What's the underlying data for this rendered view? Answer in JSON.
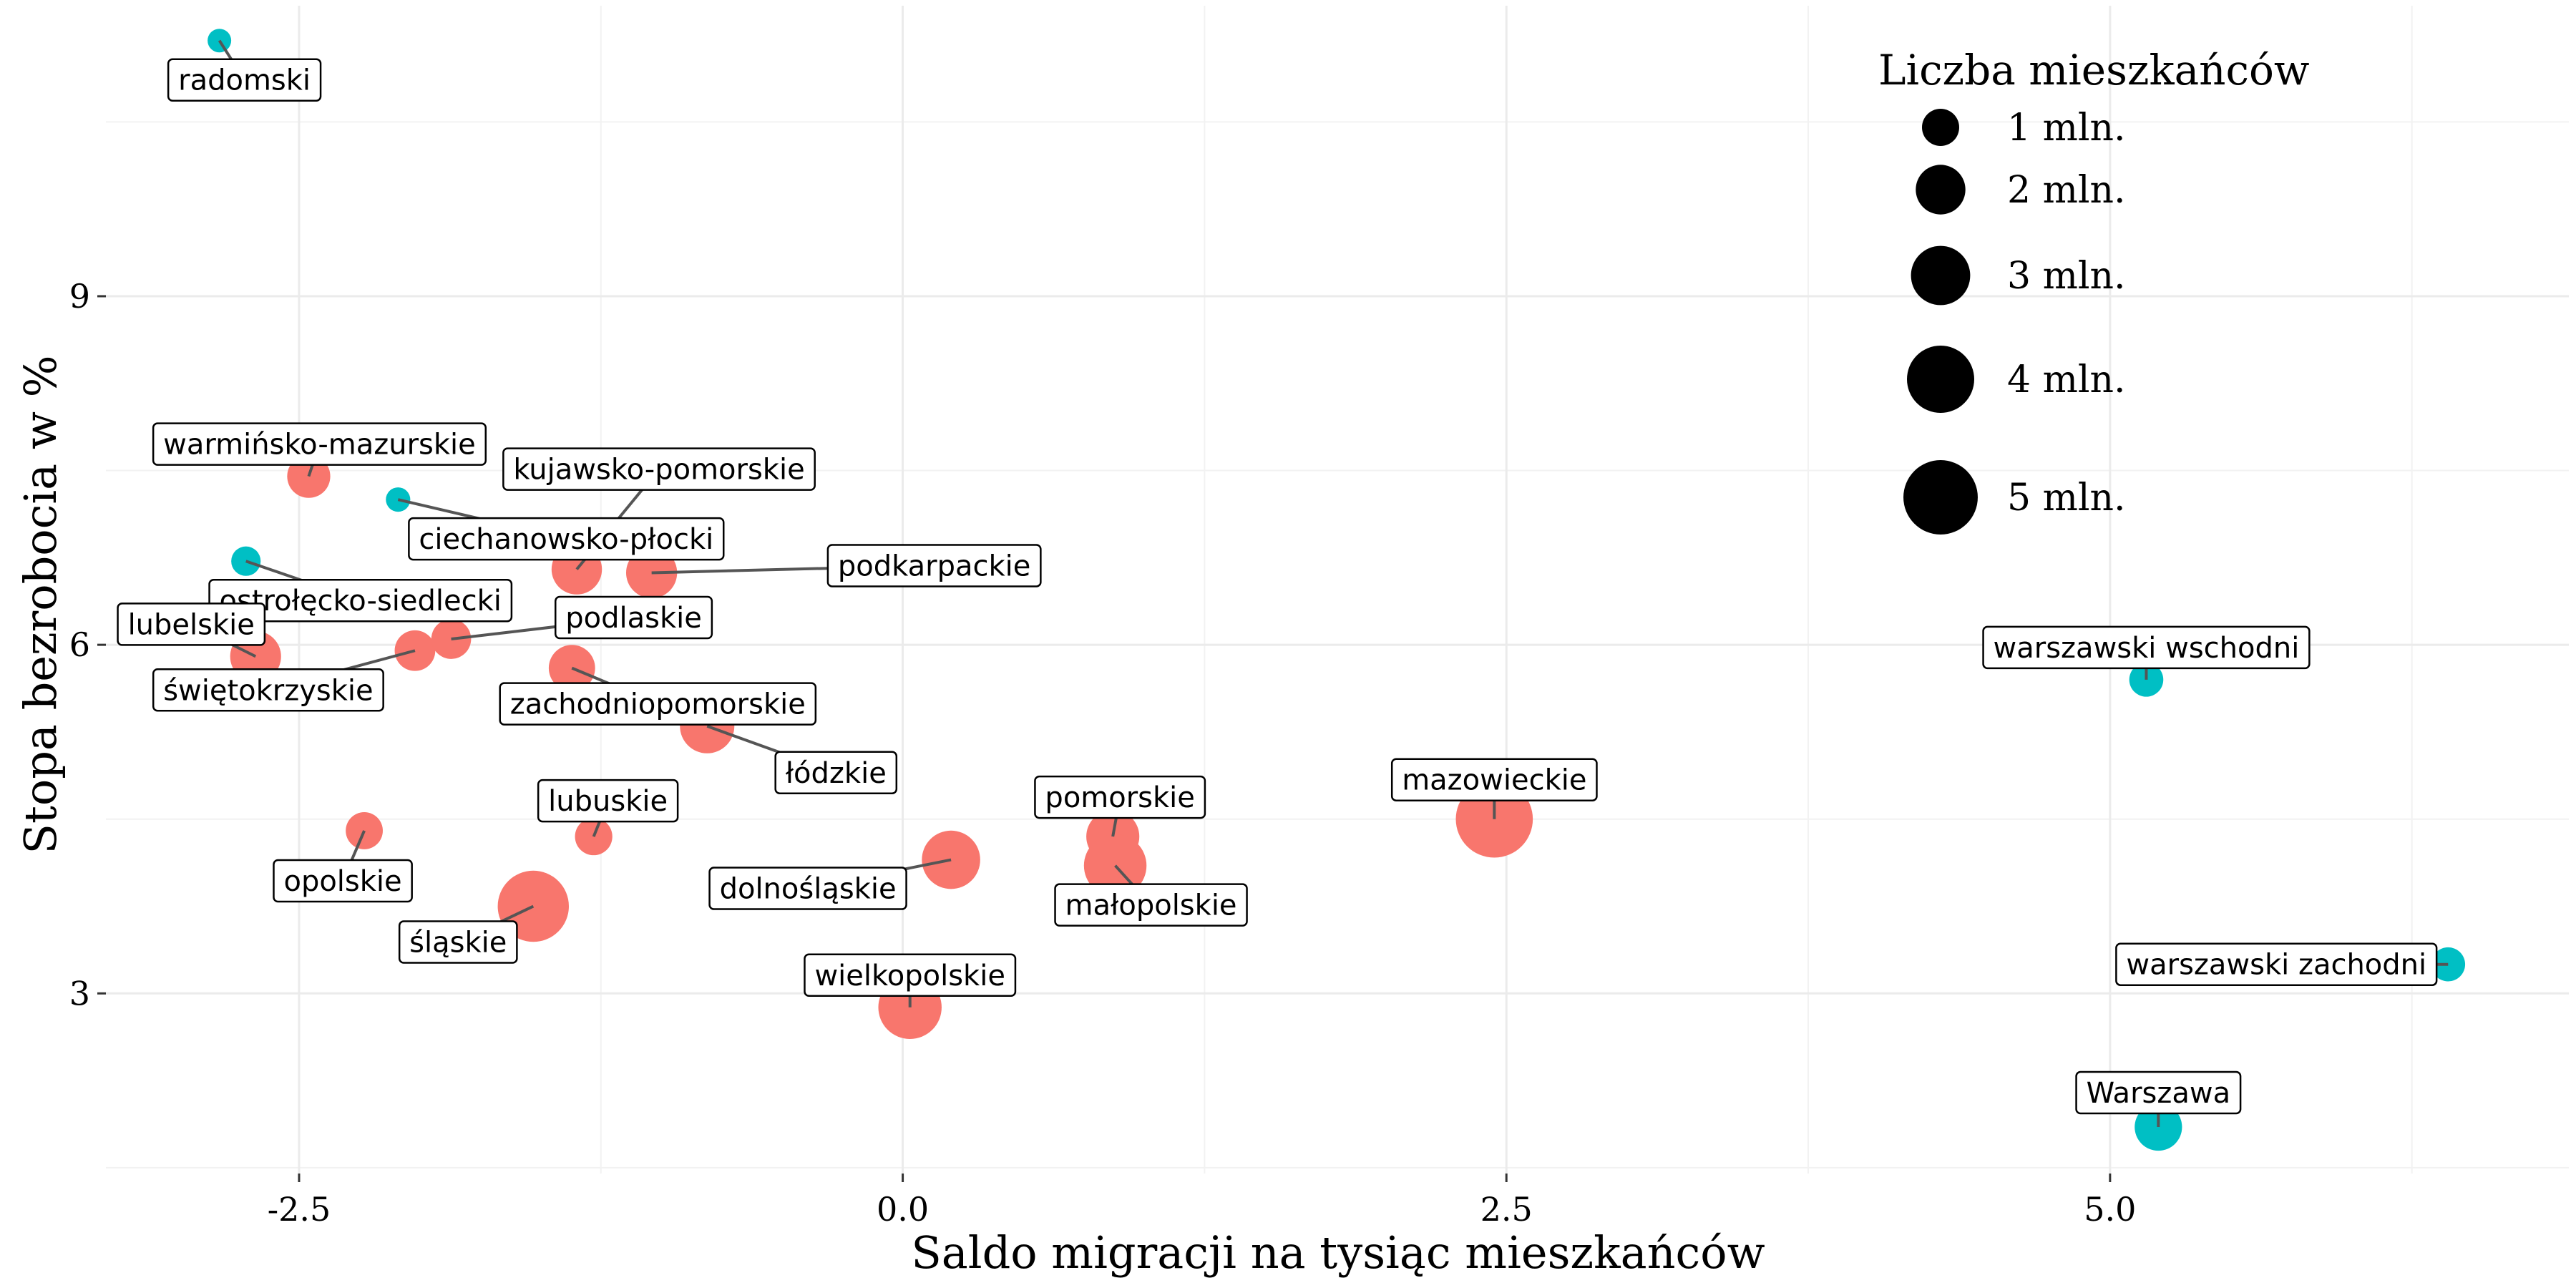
{
  "chart_data": {
    "type": "scatter",
    "title": "",
    "xlabel": "Saldo migracji na tysiąc mieszkańców",
    "ylabel": "Stopa bezrobocia w %",
    "xlim": [
      -3.3,
      6.9
    ],
    "ylim": [
      1.45,
      11.5
    ],
    "x_ticks": [
      -2.5,
      0.0,
      2.5,
      5.0
    ],
    "x_tick_labels": [
      "-2.5",
      "0.0",
      "2.5",
      "5.0"
    ],
    "y_ticks": [
      3,
      6,
      9
    ],
    "y_tick_labels": [
      "3",
      "6",
      "9"
    ],
    "grid": true,
    "colors": {
      "voivodeship": "#F8766D",
      "subregion": "#00BFC4"
    },
    "legend": {
      "title": "Liczba mieszkańców",
      "position": "top-right",
      "entries": [
        {
          "label": "1 mln.",
          "value": 1
        },
        {
          "label": "2 mln.",
          "value": 2
        },
        {
          "label": "3 mln.",
          "value": 3
        },
        {
          "label": "4 mln.",
          "value": 4
        },
        {
          "label": "5 mln.",
          "value": 5
        }
      ]
    },
    "points": [
      {
        "label": "radomski",
        "x": -2.83,
        "y": 11.2,
        "pop": 0.3,
        "group": "subregion"
      },
      {
        "label": "warmińsko-mazurskie",
        "x": -2.46,
        "y": 7.45,
        "pop": 1.43,
        "group": "voivodeship"
      },
      {
        "label": "ciechanowsko-płocki",
        "x": -2.09,
        "y": 7.25,
        "pop": 0.33,
        "group": "subregion"
      },
      {
        "label": "kujawsko-pomorskie",
        "x": -1.35,
        "y": 6.65,
        "pop": 2.07,
        "group": "voivodeship"
      },
      {
        "label": "podkarpackie",
        "x": -1.04,
        "y": 6.62,
        "pop": 2.13,
        "group": "voivodeship"
      },
      {
        "label": "ostrołęcko-siedlecki",
        "x": -2.72,
        "y": 6.72,
        "pop": 0.55,
        "group": "subregion"
      },
      {
        "label": "lubelskie",
        "x": -2.68,
        "y": 5.9,
        "pop": 2.12,
        "group": "voivodeship"
      },
      {
        "label": "świętokrzyskie",
        "x": -2.02,
        "y": 5.95,
        "pop": 1.24,
        "group": "voivodeship"
      },
      {
        "label": "podlaskie",
        "x": -1.87,
        "y": 6.05,
        "pop": 1.18,
        "group": "voivodeship"
      },
      {
        "label": "zachodniopomorskie",
        "x": -1.37,
        "y": 5.8,
        "pop": 1.7,
        "group": "voivodeship"
      },
      {
        "label": "łódzkie",
        "x": -0.81,
        "y": 5.3,
        "pop": 2.47,
        "group": "voivodeship"
      },
      {
        "label": "lubuskie",
        "x": -1.28,
        "y": 4.35,
        "pop": 1.01,
        "group": "voivodeship"
      },
      {
        "label": "opolskie",
        "x": -2.23,
        "y": 4.4,
        "pop": 0.99,
        "group": "voivodeship"
      },
      {
        "label": "śląskie",
        "x": -1.53,
        "y": 3.75,
        "pop": 4.53,
        "group": "voivodeship"
      },
      {
        "label": "dolnośląskie",
        "x": 0.2,
        "y": 4.15,
        "pop": 2.9,
        "group": "voivodeship"
      },
      {
        "label": "pomorskie",
        "x": 0.87,
        "y": 4.35,
        "pop": 2.33,
        "group": "voivodeship"
      },
      {
        "label": "małopolskie",
        "x": 0.88,
        "y": 4.1,
        "pop": 3.4,
        "group": "voivodeship"
      },
      {
        "label": "wielkopolskie",
        "x": 0.03,
        "y": 2.88,
        "pop": 3.49,
        "group": "voivodeship"
      },
      {
        "label": "mazowieckie",
        "x": 2.45,
        "y": 4.5,
        "pop": 5.4,
        "group": "voivodeship"
      },
      {
        "label": "warszawski wschodni",
        "x": 5.15,
        "y": 5.7,
        "pop": 0.8,
        "group": "subregion"
      },
      {
        "label": "warszawski zachodni",
        "x": 6.4,
        "y": 3.25,
        "pop": 0.8,
        "group": "subregion"
      },
      {
        "label": "Warszawa",
        "x": 5.2,
        "y": 1.85,
        "pop": 1.79,
        "group": "subregion"
      }
    ]
  }
}
